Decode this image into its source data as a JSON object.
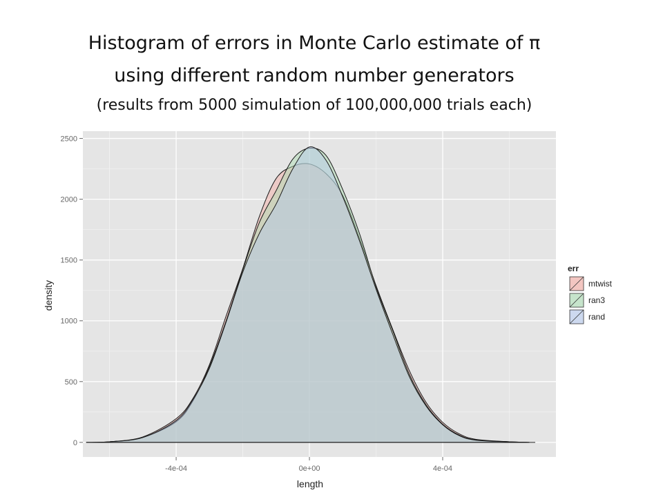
{
  "title": {
    "line1": "Histogram of errors in Monte Carlo estimate of π",
    "line2": "using different random number generators",
    "line3": "(results from 5000 simulation of 100,000,000 trials each)"
  },
  "chart_data": {
    "type": "area",
    "xlabel": "length",
    "ylabel": "density",
    "xlim": [
      -0.00068,
      0.00074
    ],
    "ylim": [
      -120,
      2560
    ],
    "x_ticks": [
      {
        "value": -0.0004,
        "label": "-4e-04"
      },
      {
        "value": 0,
        "label": "0e+00"
      },
      {
        "value": 0.0004,
        "label": "4e-04"
      }
    ],
    "y_ticks": [
      {
        "value": 0,
        "label": "0"
      },
      {
        "value": 500,
        "label": "500"
      },
      {
        "value": 1000,
        "label": "1000"
      },
      {
        "value": 1500,
        "label": "1500"
      },
      {
        "value": 2000,
        "label": "2000"
      },
      {
        "value": 2500,
        "label": "2500"
      }
    ],
    "grid": true,
    "legend": {
      "title": "err",
      "position": "right"
    },
    "series": [
      {
        "name": "mtwist",
        "color": "#f4a9a0",
        "x": [
          -0.00067,
          -0.0006,
          -0.0005,
          -0.0004,
          -0.00035,
          -0.0003,
          -0.00025,
          -0.0002,
          -0.00015,
          -0.0001,
          -5e-05,
          0,
          5e-05,
          0.0001,
          0.00015,
          0.0002,
          0.00025,
          0.0003,
          0.00035,
          0.0004,
          0.00045,
          0.0005,
          0.0006,
          0.00066
        ],
        "values": [
          0,
          5,
          45,
          195,
          360,
          640,
          1040,
          1430,
          1860,
          2170,
          2270,
          2290,
          2210,
          2030,
          1680,
          1290,
          930,
          590,
          330,
          165,
          70,
          25,
          5,
          0
        ]
      },
      {
        "name": "ran3",
        "color": "#a8dbb0",
        "x": [
          -0.00067,
          -0.0006,
          -0.0005,
          -0.0004,
          -0.00035,
          -0.0003,
          -0.00025,
          -0.0002,
          -0.00015,
          -0.0001,
          -5e-05,
          0,
          5e-05,
          0.0001,
          0.00015,
          0.0002,
          0.00025,
          0.0003,
          0.00035,
          0.0004,
          0.00045,
          0.0005,
          0.0006,
          0.00066
        ],
        "values": [
          0,
          5,
          40,
          170,
          340,
          625,
          1000,
          1420,
          1810,
          2070,
          2330,
          2420,
          2360,
          2080,
          1720,
          1280,
          920,
          560,
          310,
          150,
          60,
          20,
          5,
          0
        ]
      },
      {
        "name": "rand",
        "color": "#b4c8ec",
        "x": [
          -0.00067,
          -0.0006,
          -0.0005,
          -0.0004,
          -0.00035,
          -0.0003,
          -0.00025,
          -0.0002,
          -0.00015,
          -0.0001,
          -5e-05,
          0,
          5e-05,
          0.0001,
          0.00015,
          0.0002,
          0.00025,
          0.0003,
          0.00035,
          0.0004,
          0.00045,
          0.0005,
          0.0006,
          0.00066
        ],
        "values": [
          0,
          5,
          40,
          180,
          350,
          610,
          990,
          1400,
          1720,
          1960,
          2250,
          2430,
          2320,
          2020,
          1660,
          1260,
          890,
          540,
          300,
          145,
          55,
          18,
          5,
          0
        ]
      }
    ]
  }
}
